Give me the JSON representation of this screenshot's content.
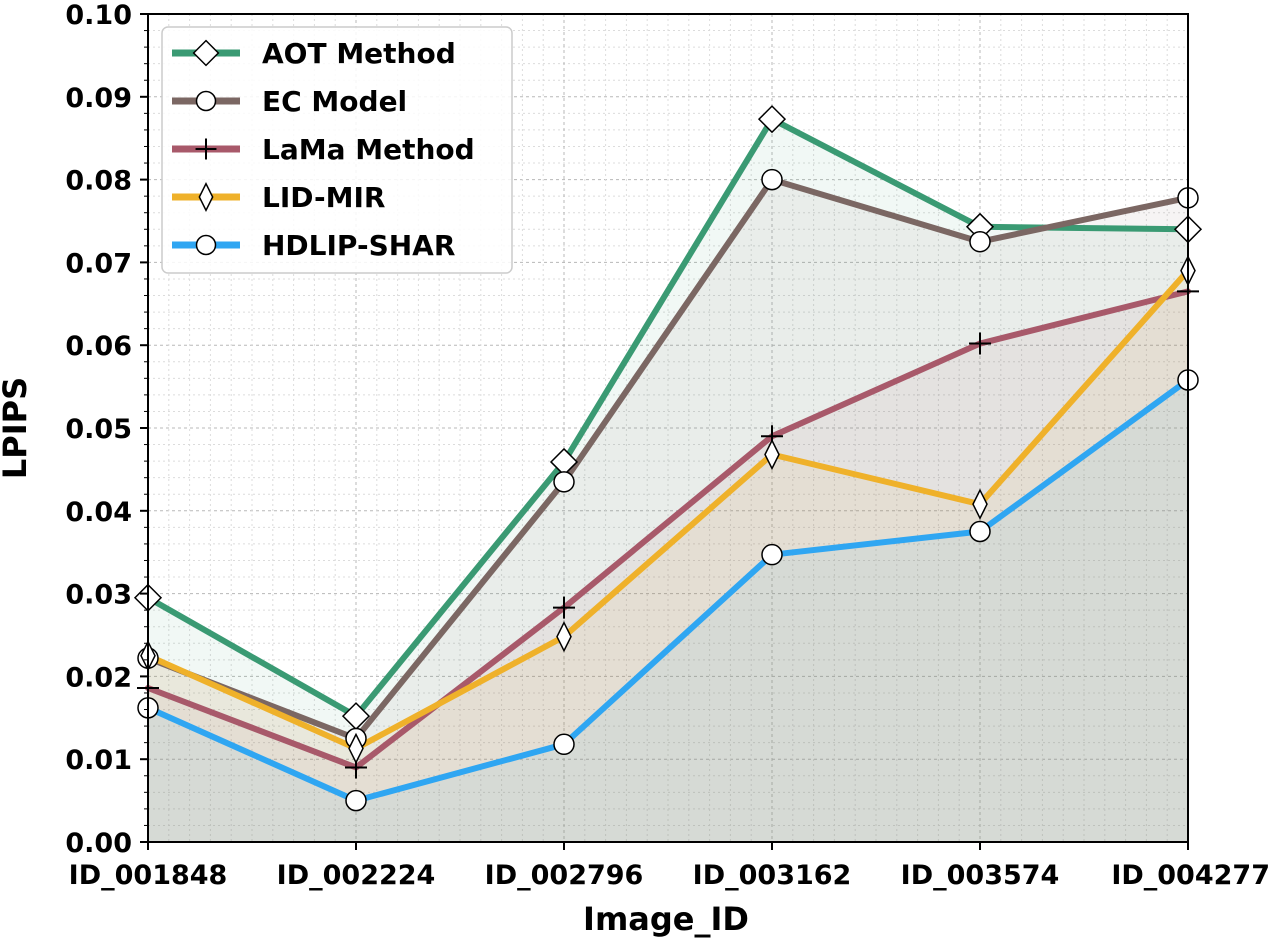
{
  "chart_data": {
    "type": "line",
    "title": "",
    "xlabel": "Image_ID",
    "ylabel": "LPIPS",
    "categories": [
      "ID_001848",
      "ID_002224",
      "ID_002796",
      "ID_003162",
      "ID_003574",
      "ID_004277"
    ],
    "ylim": [
      0.0,
      0.1
    ],
    "yticks": [
      "0.00",
      "0.01",
      "0.02",
      "0.03",
      "0.04",
      "0.05",
      "0.06",
      "0.07",
      "0.08",
      "0.09",
      "0.10"
    ],
    "grid": true,
    "legend_position": "top-left",
    "series": [
      {
        "name": "AOT Method",
        "color": "#3a9a73",
        "marker": "diamond",
        "values": [
          0.0295,
          0.0152,
          0.0459,
          0.0873,
          0.0743,
          0.074
        ]
      },
      {
        "name": "EC Model",
        "color": "#7b6763",
        "marker": "circle",
        "values": [
          0.0222,
          0.0125,
          0.0435,
          0.08,
          0.0725,
          0.0778
        ]
      },
      {
        "name": "LaMa Method",
        "color": "#a8596a",
        "marker": "plus",
        "values": [
          0.0186,
          0.009,
          0.0283,
          0.049,
          0.0602,
          0.0665
        ]
      },
      {
        "name": "LID-MIR",
        "color": "#efb12a",
        "marker": "thin_diamond",
        "values": [
          0.0225,
          0.0113,
          0.0248,
          0.0468,
          0.0408,
          0.069
        ]
      },
      {
        "name": "HDLIP-SHAR",
        "color": "#2fa6f2",
        "marker": "circle",
        "values": [
          0.0162,
          0.005,
          0.0118,
          0.0347,
          0.0375,
          0.0558
        ]
      }
    ]
  }
}
